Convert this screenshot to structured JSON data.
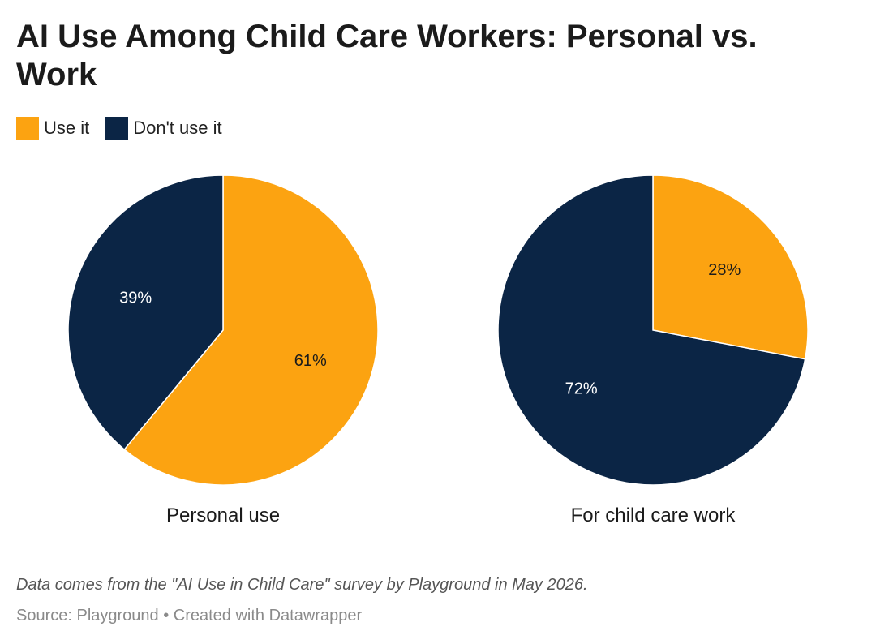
{
  "title": "AI Use Among Child Care Workers: Personal vs. Work",
  "legend": [
    {
      "label": "Use it",
      "color": "#fca311"
    },
    {
      "label": "Don't use it",
      "color": "#0b2545"
    }
  ],
  "chart_data": {
    "type": "pie",
    "categories": [
      "Use it",
      "Don't use it"
    ],
    "colors": [
      "#fca311",
      "#0b2545"
    ],
    "label_colors": [
      "#1b1b1b",
      "#ffffff"
    ],
    "pies": [
      {
        "name": "Personal use",
        "values": [
          61,
          39
        ],
        "labels": [
          "61%",
          "39%"
        ]
      },
      {
        "name": "For child care work",
        "values": [
          28,
          72
        ],
        "labels": [
          "28%",
          "72%"
        ]
      }
    ]
  },
  "note": "Data comes from the \"AI Use in Child Care\" survey by Playground in May 2026.",
  "source": "Source: Playground • Created with Datawrapper"
}
